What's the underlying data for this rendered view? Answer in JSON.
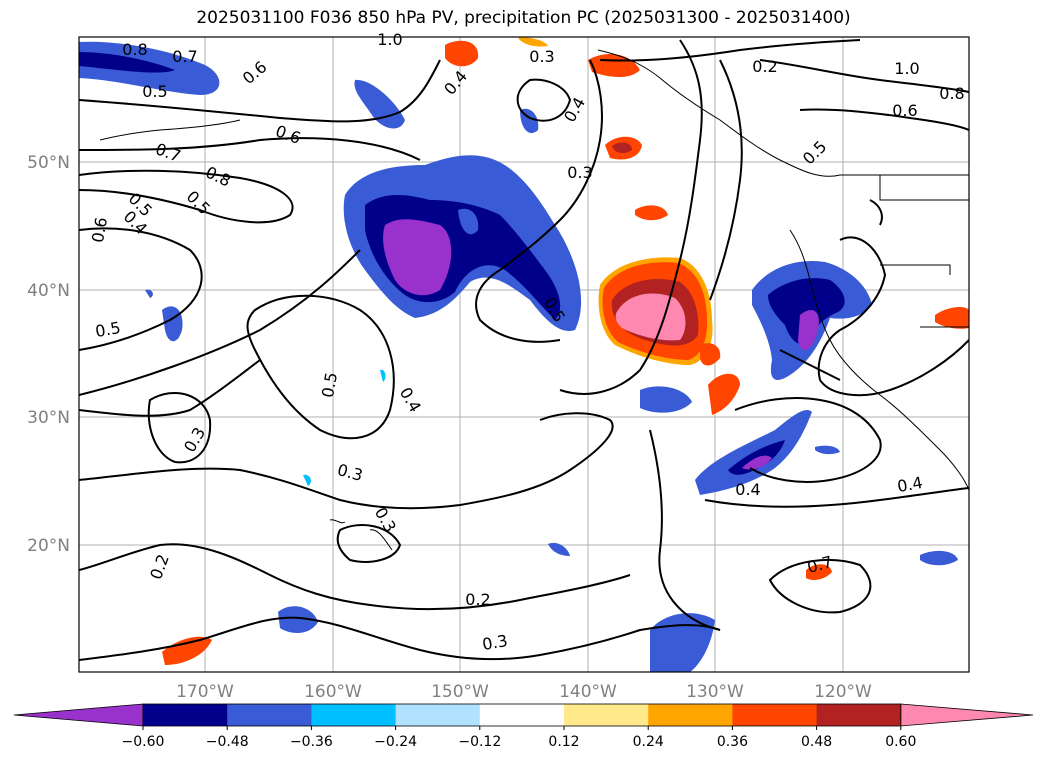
{
  "title": "2025031100 F036 850 hPa PV, precipitation PC (2025031300 - 2025031400)",
  "axes": {
    "lat_labels": [
      "50°N",
      "40°N",
      "30°N",
      "20°N"
    ],
    "lon_labels": [
      "170°W",
      "160°W",
      "150°W",
      "140°W",
      "130°W",
      "120°W"
    ]
  },
  "colorbar": {
    "ticks": [
      "−0.60",
      "−0.48",
      "−0.36",
      "−0.24",
      "−0.12",
      "0.12",
      "0.24",
      "0.36",
      "0.48",
      "0.60"
    ],
    "colors": [
      "#9932cc",
      "#00008b",
      "#3a5bd6",
      "#00bfff",
      "#b0e2ff",
      "#ffffff",
      "#ffe98a",
      "#ffa500",
      "#ff4500",
      "#b22222",
      "#ff88b0"
    ]
  },
  "contour_labels": [
    "0.8",
    "0.7",
    "0.6",
    "1.0",
    "0.3",
    "0.4",
    "0.5",
    "0.6",
    "0.7",
    "0.8",
    "0.5",
    "0.5",
    "0.6",
    "0.4",
    "0.5",
    "0.5",
    "0.4",
    "0.3",
    "0.3",
    "0.3",
    "0.2",
    "0.2",
    "0.3",
    "0.5",
    "0.4",
    "0.3",
    "0.4",
    "0.2",
    "1.0",
    "0.8",
    "0.6",
    "0.7",
    "0.5",
    "0.4"
  ]
}
